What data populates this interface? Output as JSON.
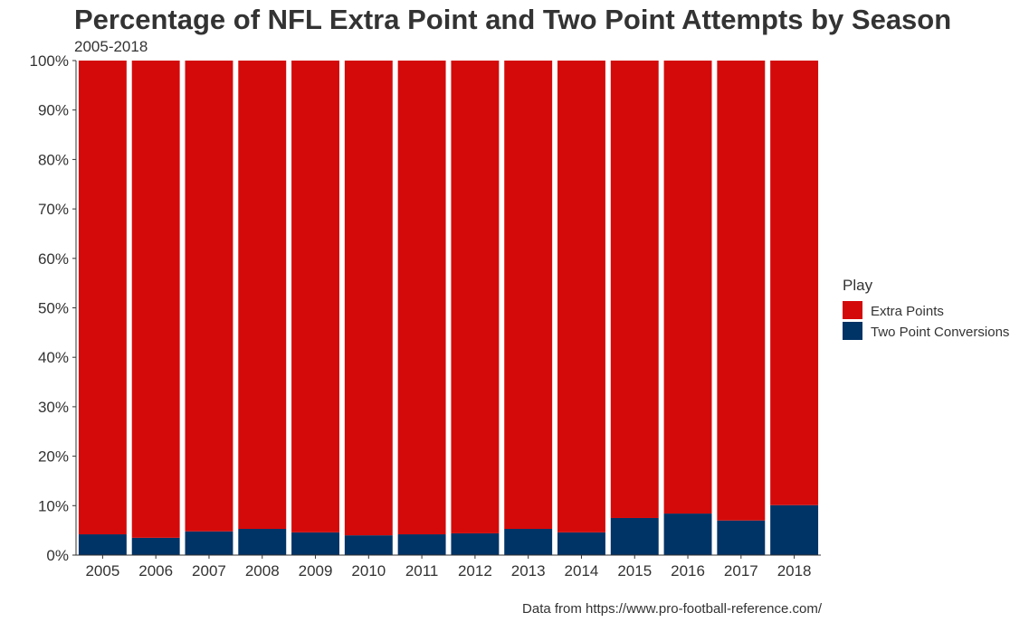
{
  "chart_data": {
    "type": "bar",
    "stacked": true,
    "percent": true,
    "title": "Percentage of NFL Extra Point and Two Point Attempts by Season",
    "subtitle": "2005-2018",
    "caption": "Data from https://www.pro-football-reference.com/",
    "categories": [
      "2005",
      "2006",
      "2007",
      "2008",
      "2009",
      "2010",
      "2011",
      "2012",
      "2013",
      "2014",
      "2015",
      "2016",
      "2017",
      "2018"
    ],
    "series": [
      {
        "name": "Two Point Conversions",
        "color": "#003366",
        "values": [
          4.2,
          3.5,
          4.8,
          5.3,
          4.6,
          4.0,
          4.2,
          4.4,
          5.3,
          4.6,
          7.5,
          8.4,
          7.0,
          10.1
        ]
      },
      {
        "name": "Extra Points",
        "color": "#D40A0A",
        "values": [
          95.8,
          96.5,
          95.2,
          94.7,
          95.4,
          96.0,
          95.8,
          95.6,
          94.7,
          95.4,
          92.5,
          91.6,
          93.0,
          89.9
        ]
      }
    ],
    "ylim": [
      0,
      100
    ],
    "yticks": [
      "0%",
      "10%",
      "20%",
      "30%",
      "40%",
      "50%",
      "60%",
      "70%",
      "80%",
      "90%",
      "100%"
    ],
    "legend": {
      "title": "Play",
      "position": "right",
      "items": [
        {
          "label": "Extra Points",
          "color": "#D40A0A"
        },
        {
          "label": "Two Point Conversions",
          "color": "#003366"
        }
      ]
    },
    "grid": false
  }
}
